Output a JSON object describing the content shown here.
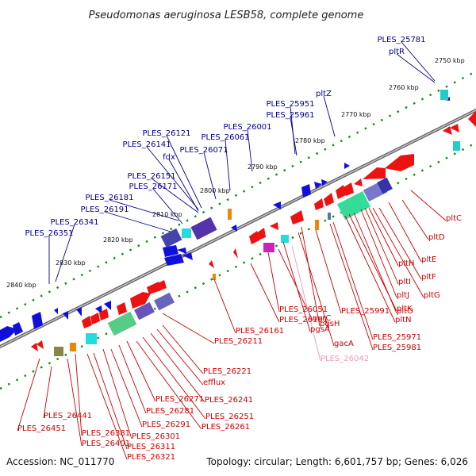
{
  "title": "Pseudomonas aeruginosa LESB58, complete genome",
  "footer": {
    "accession": "Accession: NC_011770",
    "summary": "Topology: circular; Length: 6,601,757 bp; Genes: 6,026"
  },
  "colors": {
    "forward_gene": "#1010dd",
    "reverse_gene": "#ee1111",
    "forward_label": "#00008b",
    "reverse_label": "#cc0000",
    "highlight_label": "#ee99bb",
    "tick": "#1a8a1a",
    "backbone": "#888888"
  },
  "ticks": [
    "2750 kbp",
    "2760 kbp",
    "2770 kbp",
    "2780 kbp",
    "2790 kbp",
    "2800 kbp",
    "2810 kbp",
    "2820 kbp",
    "2830 kbp",
    "2840 kbp"
  ],
  "forward_genes": [
    "PLES_25781",
    "pltR",
    "pltZ",
    "PLES_25951",
    "PLES_25961",
    "PLES_26001",
    "PLES_26061",
    "PLES_26071",
    "PLES_26121",
    "PLES_26141",
    "fdx",
    "PLES_26151",
    "PLES_26171",
    "PLES_26181",
    "PLES_26191",
    "PLES_26341",
    "PLES_26351"
  ],
  "reverse_genes_right": [
    "pltC",
    "pltD",
    "pltE",
    "pltF",
    "pltG",
    "pltH",
    "pltI",
    "pltJ",
    "pltO",
    "pltK",
    "pltN",
    "PLES_25971",
    "PLES_25981",
    "PLES_25991",
    "pqsH",
    "gacA",
    "pgsA",
    "uvrC",
    "PLES_26051",
    "PLES_26101",
    "PLES_26161",
    "PLES_26211"
  ],
  "highlight_gene": "PLES_26042",
  "reverse_genes_left": [
    "PLES_26221",
    "efflux",
    "PLES_26241",
    "PLES_26251",
    "PLES_26261",
    "PLES_26271",
    "PLES_26281",
    "PLES_26291",
    "PLES_26301",
    "PLES_26311",
    "PLES_26321",
    "PLES_26381",
    "PLES_26401",
    "PLES_26441",
    "PLES_26451"
  ]
}
